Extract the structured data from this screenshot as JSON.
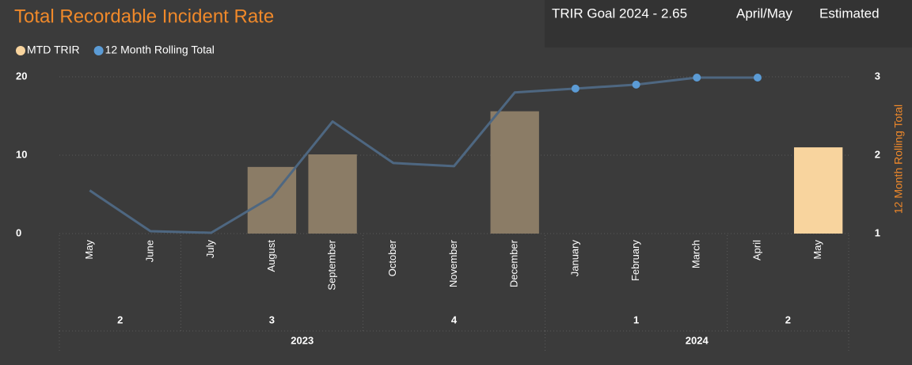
{
  "chart_data": {
    "type": "bar_line",
    "title": "Total Recordable Incident Rate",
    "header_texts": [
      "TRIR Goal 2024 - 2.65",
      "April/May",
      "Estimated"
    ],
    "categories": [
      "May",
      "June",
      "July",
      "August",
      "September",
      "October",
      "November",
      "December",
      "January",
      "February",
      "March",
      "April",
      "May"
    ],
    "quarters": [
      {
        "label": "2",
        "count": 2
      },
      {
        "label": "3",
        "count": 3
      },
      {
        "label": "4",
        "count": 3
      },
      {
        "label": "1",
        "count": 3
      },
      {
        "label": "2",
        "count": 2
      }
    ],
    "years": [
      {
        "label": "2023",
        "count": 8
      },
      {
        "label": "2024",
        "count": 5
      }
    ],
    "series": [
      {
        "name": "MTD TRIR",
        "color": "#f8d49e",
        "bar_colors": [
          "#8b7c66",
          "#8b7c66",
          "#8b7c66",
          "#8b7c66",
          "#8b7c66",
          "#8b7c66",
          "#8b7c66",
          "#8b7c66",
          "#8b7c66",
          "#8b7c66",
          "#8b7c66",
          "#8b7c66",
          "#f8d49e"
        ],
        "values": [
          null,
          null,
          null,
          8.5,
          10.1,
          null,
          null,
          15.6,
          null,
          null,
          null,
          null,
          11.0
        ]
      },
      {
        "name": "12 Month Rolling Total",
        "color": "#5b9bd5",
        "line_color": "#4e6781",
        "axis": "y2",
        "markers": [
          false,
          false,
          false,
          false,
          false,
          false,
          false,
          false,
          true,
          true,
          true,
          true,
          false
        ],
        "values": [
          1.55,
          1.03,
          1.01,
          1.47,
          2.43,
          1.9,
          1.86,
          2.8,
          2.85,
          2.9,
          2.99,
          2.99,
          null
        ]
      }
    ],
    "y2_label": "12 Month Rolling Total",
    "ylim": [
      0,
      20
    ],
    "yticks": [
      0,
      10,
      20
    ],
    "y2lim": [
      1,
      3
    ],
    "y2ticks": [
      1,
      2,
      3
    ],
    "grid": true
  }
}
